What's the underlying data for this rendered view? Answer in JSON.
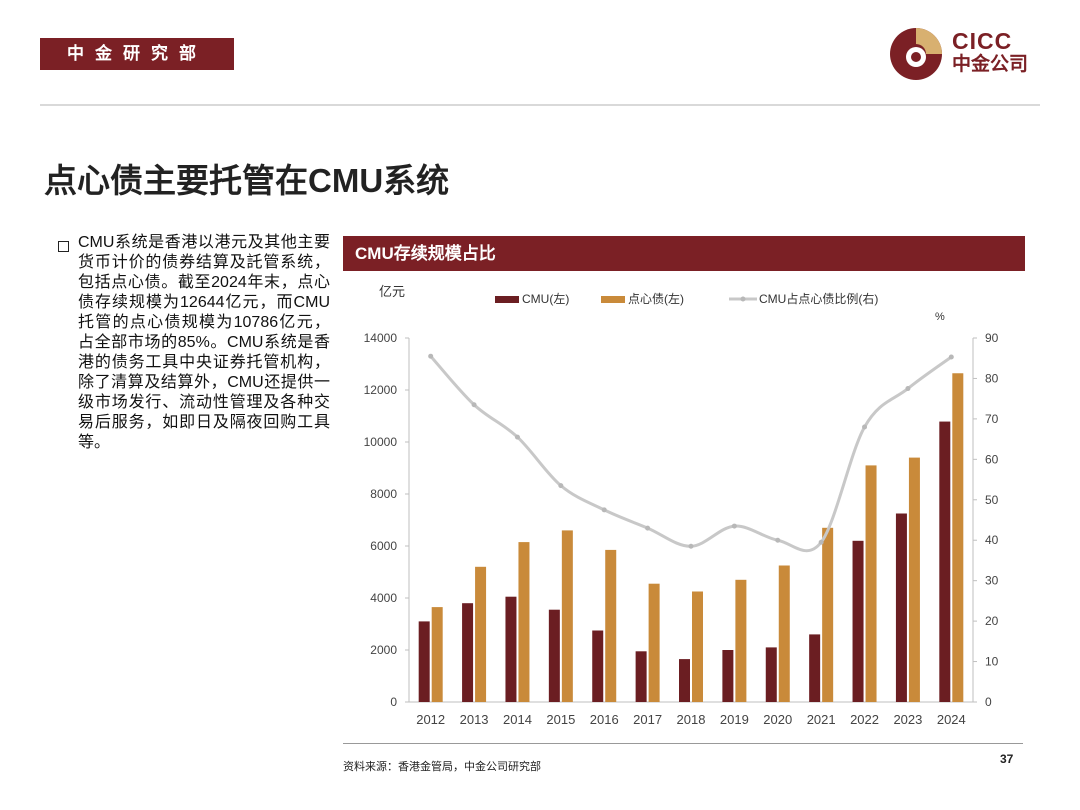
{
  "header": {
    "department": "中金研究部",
    "logo_en": "CICC",
    "logo_cn": "中金公司"
  },
  "page_title": "点心债主要托管在CMU系统",
  "bullet_text": "CMU系统是香港以港元及其他主要货币计价的债券结算及託管系统，包括点心债。截至2024年末，点心债存续规模为12644亿元，而CMU托管的点心债规模为10786亿元，占全部市场的85%。CMU系统是香港的债务工具中央证券托管机构，除了清算及结算外，CMU还提供一级市场发行、流动性管理及各种交易后服务，如即日及隔夜回购工具等。",
  "chart_header": "CMU存续规模占比",
  "footer": {
    "source": "资料来源：香港金管局，中金公司研究部",
    "page_number": "37"
  },
  "colors": {
    "brand": "#7b2025",
    "cmu_bar": "#6b1e22",
    "dimsum_bar": "#c98a3a",
    "ratio_line": "#c8c8c8"
  },
  "chart_data": {
    "type": "bar",
    "categories": [
      "2012",
      "2013",
      "2014",
      "2015",
      "2016",
      "2017",
      "2018",
      "2019",
      "2020",
      "2021",
      "2022",
      "2023",
      "2024"
    ],
    "series": [
      {
        "name": "CMU(左)",
        "type": "bar",
        "axis": "left",
        "values": [
          3100,
          3800,
          4050,
          3550,
          2750,
          1950,
          1650,
          2000,
          2100,
          2600,
          6200,
          7250,
          10786
        ]
      },
      {
        "name": "点心债(左)",
        "type": "bar",
        "axis": "left",
        "values": [
          3650,
          5200,
          6150,
          6600,
          5850,
          4550,
          4250,
          4700,
          5250,
          6700,
          9100,
          9400,
          12644
        ]
      },
      {
        "name": "CMU占点心债比例(右)",
        "type": "line",
        "axis": "right",
        "values": [
          85.5,
          73.5,
          65.5,
          53.5,
          47.5,
          43,
          38.5,
          43.5,
          40,
          39.5,
          68,
          77.5,
          85.3
        ]
      }
    ],
    "left_axis": {
      "unit": "亿元",
      "ylim": [
        0,
        14000
      ],
      "ticks": [
        0,
        2000,
        4000,
        6000,
        8000,
        10000,
        12000,
        14000
      ]
    },
    "right_axis": {
      "unit": "%",
      "ylim": [
        0,
        90
      ],
      "ticks": [
        0,
        10,
        20,
        30,
        40,
        50,
        60,
        70,
        80,
        90
      ]
    },
    "legend_position": "top",
    "grid": false
  }
}
